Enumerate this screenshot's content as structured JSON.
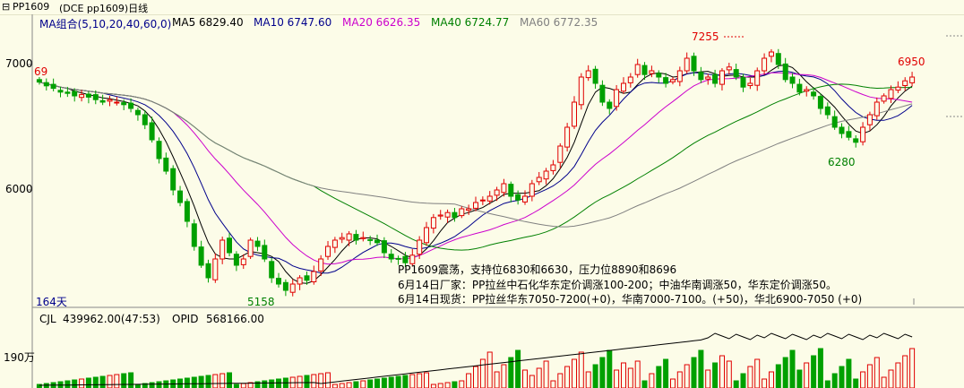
{
  "header": {
    "symbol": "PP1609",
    "contract": "(DCE pp1609)日线",
    "ma_group": "MA组合(5,10,20,40,60,0)",
    "ma": [
      {
        "label": "MA5 6829.40",
        "color": "#000000"
      },
      {
        "label": "MA10 6747.60",
        "color": "#00008b"
      },
      {
        "label": "MA20 6626.35",
        "color": "#cc00cc"
      },
      {
        "label": "MA40 6724.77",
        "color": "#008000"
      },
      {
        "label": "MA60 6772.35",
        "color": "#808080"
      }
    ]
  },
  "axis": {
    "y_ticks": [
      "7000",
      "6000"
    ],
    "days_label": "164天",
    "vol_tick": "190万"
  },
  "marks": {
    "high_label": "7255",
    "right_label": "6950",
    "mid_low_label": "6280",
    "low_label": "5158",
    "left_partial": "69"
  },
  "annotation": {
    "line1": "PP1609震荡，支持位6830和6630，压力位8890和8696",
    "line2": "6月14日厂家：PP拉丝中石化华东定价调涨100-200；中油华南调涨50，华东定价调涨50。",
    "line3": "6月14日现货：PP拉丝华东7050-7200(+0)，华南7000-7100。(+50)，华北6900-7050 (+0)"
  },
  "volume": {
    "cjl_label": "CJL",
    "cjl_value": "439962.00(47:53)",
    "opid_label": "OPID",
    "opid_value": "568166.00"
  },
  "colors": {
    "up": "#e00000",
    "down": "#00a000"
  },
  "chart_data": {
    "type": "candlestick",
    "ylim": [
      5000,
      7400
    ],
    "closes": [
      6860,
      6830,
      6810,
      6780,
      6770,
      6750,
      6760,
      6740,
      6720,
      6700,
      6720,
      6700,
      6680,
      6650,
      6600,
      6520,
      6400,
      6250,
      6150,
      6000,
      5900,
      5750,
      5550,
      5400,
      5300,
      5450,
      5600,
      5500,
      5400,
      5450,
      5600,
      5550,
      5450,
      5300,
      5250,
      5200,
      5250,
      5300,
      5280,
      5350,
      5450,
      5550,
      5600,
      5620,
      5650,
      5600,
      5620,
      5600,
      5580,
      5500,
      5450,
      5450,
      5420,
      5480,
      5600,
      5700,
      5780,
      5800,
      5820,
      5780,
      5850,
      5850,
      5900,
      5920,
      5950,
      6000,
      6050,
      5950,
      5920,
      5950,
      6050,
      6100,
      6150,
      6200,
      6350,
      6500,
      6700,
      6900,
      6950,
      6850,
      6700,
      6650,
      6800,
      6850,
      6900,
      7000,
      6920,
      6950,
      6900,
      6850,
      6880,
      6950,
      7050,
      6950,
      6880,
      6900,
      6850,
      6950,
      6980,
      6900,
      6820,
      6850,
      6950,
      7050,
      7100,
      7000,
      6880,
      6850,
      6780,
      6800,
      6750,
      6650,
      6600,
      6500,
      6450,
      6420,
      6380,
      6500,
      6600,
      6700,
      6750,
      6800,
      6820,
      6870,
      6900
    ]
  }
}
